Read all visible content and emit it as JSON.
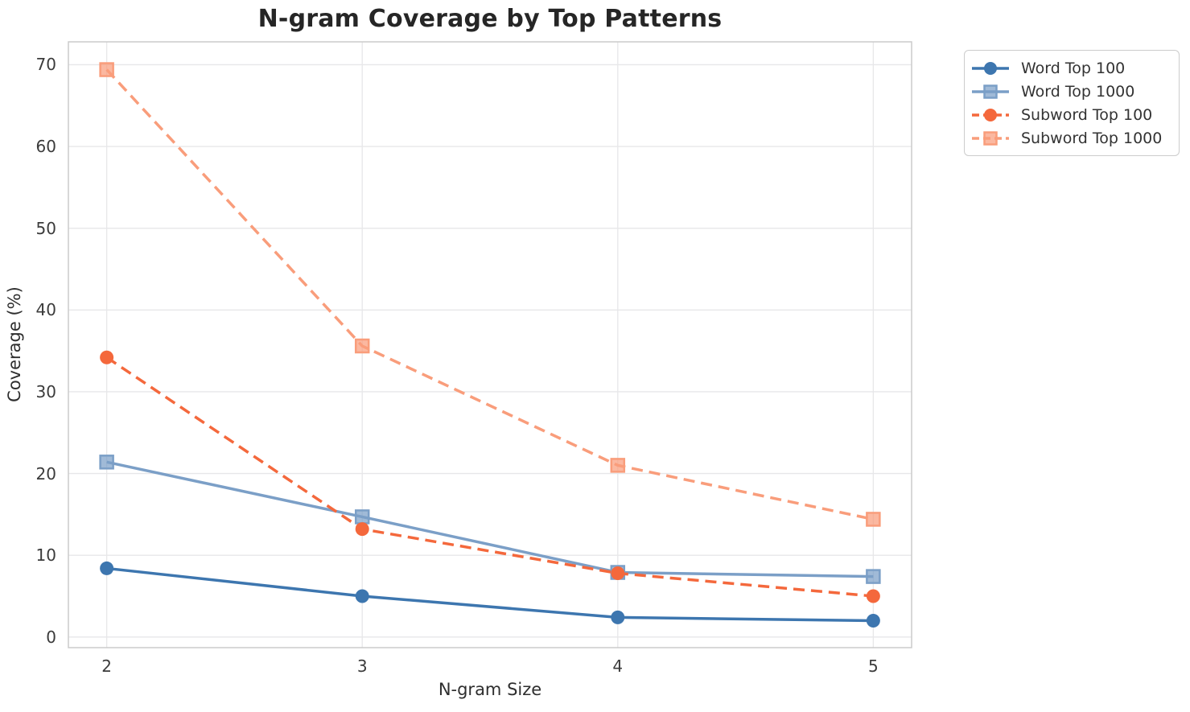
{
  "chart_data": {
    "type": "line",
    "title": "N-gram Coverage by Top Patterns",
    "xlabel": "N-gram Size",
    "ylabel": "Coverage (%)",
    "x": [
      2,
      3,
      4,
      5
    ],
    "xtick_labels": [
      "2",
      "3",
      "4",
      "5"
    ],
    "yticks": [
      0,
      10,
      20,
      30,
      40,
      50,
      60,
      70
    ],
    "xlim": [
      1.85,
      5.15
    ],
    "ylim": [
      -1.3,
      72.8
    ],
    "grid": true,
    "legend_position": "outside-top-right",
    "series": [
      {
        "name": "Word Top 100",
        "values": [
          8.4,
          5.0,
          2.4,
          2.0
        ],
        "color": "#3d76af",
        "style": "solid",
        "marker": "circle"
      },
      {
        "name": "Word Top 1000",
        "values": [
          21.4,
          14.7,
          7.9,
          7.4
        ],
        "color": "#7b9fc7",
        "style": "solid",
        "marker": "square"
      },
      {
        "name": "Subword Top 100",
        "values": [
          34.2,
          13.2,
          7.8,
          5.0
        ],
        "color": "#f4683c",
        "style": "dashed",
        "marker": "circle"
      },
      {
        "name": "Subword Top 1000",
        "values": [
          69.4,
          35.6,
          21.0,
          14.4
        ],
        "color": "#f99d7b",
        "style": "dashed",
        "marker": "square"
      }
    ],
    "colors": {
      "gridline": "#e7e7e9",
      "plot_border": "#cbcbcb",
      "tick_text": "#3b3b3b",
      "title_text": "#262626"
    }
  }
}
